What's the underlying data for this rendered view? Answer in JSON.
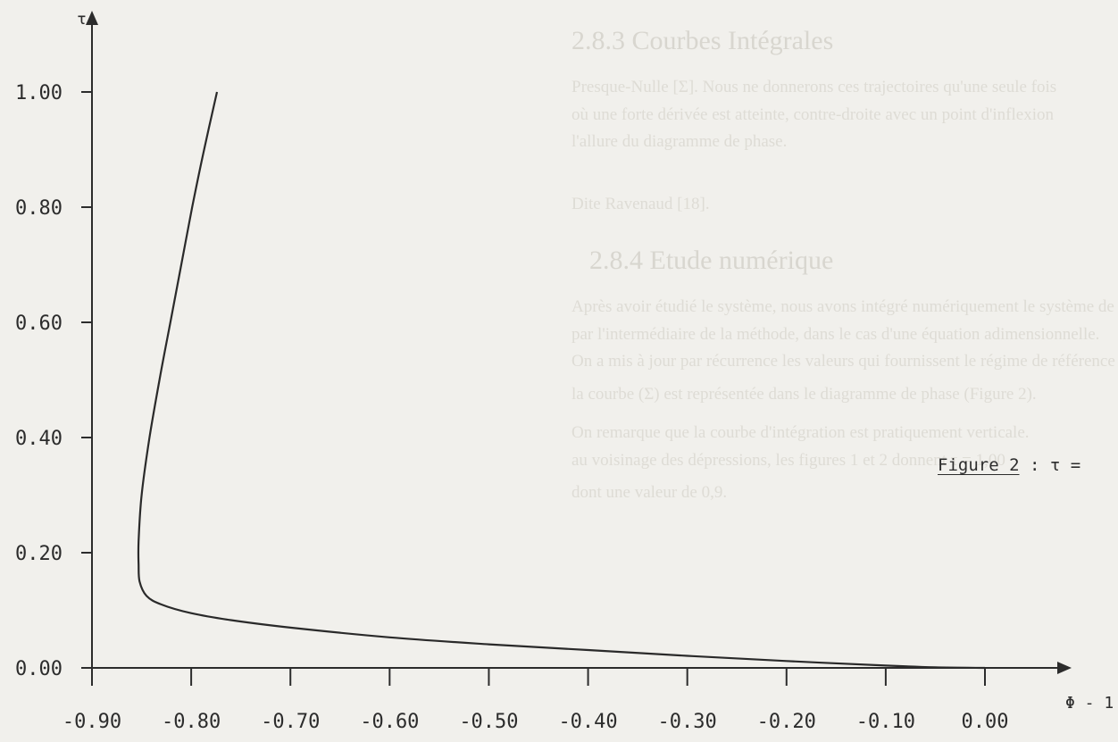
{
  "background_text": {
    "heading_1": "2.8.3 Courbes Intégrales",
    "paragraph_1": [
      "Presque-Nulle [Σ]. Nous ne donnerons ces trajectoires qu'une seule fois",
      "où une forte dérivée est atteinte, contre-droite avec un point d'inflexion",
      "l'allure du diagramme de phase."
    ],
    "reference": "Dite Ravenaud [18].",
    "heading_2": "2.8.4 Etude numérique",
    "paragraph_2": [
      "Après avoir étudié le système, nous avons intégré numériquement le système de",
      "par l'intermédiaire de la méthode, dans le cas d'une équation adimensionnelle.",
      "On a mis à jour par récurrence les valeurs qui fournissent le régime de référence",
      "la courbe (Σ) est représentée dans le diagramme de phase (Figure 2)."
    ],
    "paragraph_3": [
      "On remarque que la courbe d'intégration est pratiquement verticale.",
      "au voisinage des dépressions, les figures 1 et 2 donnent τ = 1,00",
      "dont une valeur de 0,9."
    ]
  },
  "caption": {
    "figure_word": "Figure 2",
    "rest": " : τ ="
  },
  "chart_data": {
    "type": "line",
    "title": "",
    "xlabel": "Φ - 1",
    "ylabel": "τ",
    "xlim": [
      -0.9,
      0.0
    ],
    "ylim": [
      0.0,
      1.0
    ],
    "x_ticks": [
      -0.9,
      -0.8,
      -0.7,
      -0.6,
      -0.5,
      -0.4,
      -0.3,
      -0.2,
      -0.1,
      0.0
    ],
    "x_tick_labels": [
      "-0.90",
      "-0.80",
      "-0.70",
      "-0.60",
      "-0.50",
      "-0.40",
      "-0.30",
      "-0.20",
      "-0.10",
      "0.00"
    ],
    "y_ticks": [
      0.0,
      0.2,
      0.4,
      0.6,
      0.8,
      1.0
    ],
    "y_tick_labels": [
      "0.00",
      "0.20",
      "0.40",
      "0.60",
      "0.80",
      "1.00"
    ],
    "grid": false,
    "series": [
      {
        "color": "#2a2a2a",
        "points": [
          [
            -0.774,
            1.0
          ],
          [
            -0.787,
            0.9
          ],
          [
            -0.799,
            0.8
          ],
          [
            -0.81,
            0.7
          ],
          [
            -0.821,
            0.6
          ],
          [
            -0.832,
            0.5
          ],
          [
            -0.842,
            0.4
          ],
          [
            -0.85,
            0.3
          ],
          [
            -0.853,
            0.22
          ],
          [
            -0.853,
            0.18
          ],
          [
            -0.852,
            0.15
          ],
          [
            -0.845,
            0.125
          ],
          [
            -0.83,
            0.11
          ],
          [
            -0.8,
            0.095
          ],
          [
            -0.76,
            0.083
          ],
          [
            -0.7,
            0.07
          ],
          [
            -0.6,
            0.053
          ],
          [
            -0.5,
            0.041
          ],
          [
            -0.4,
            0.031
          ],
          [
            -0.3,
            0.021
          ],
          [
            -0.2,
            0.012
          ],
          [
            -0.1,
            0.004
          ],
          [
            -0.05,
            0.001
          ],
          [
            0.0,
            0.0
          ]
        ]
      }
    ]
  }
}
